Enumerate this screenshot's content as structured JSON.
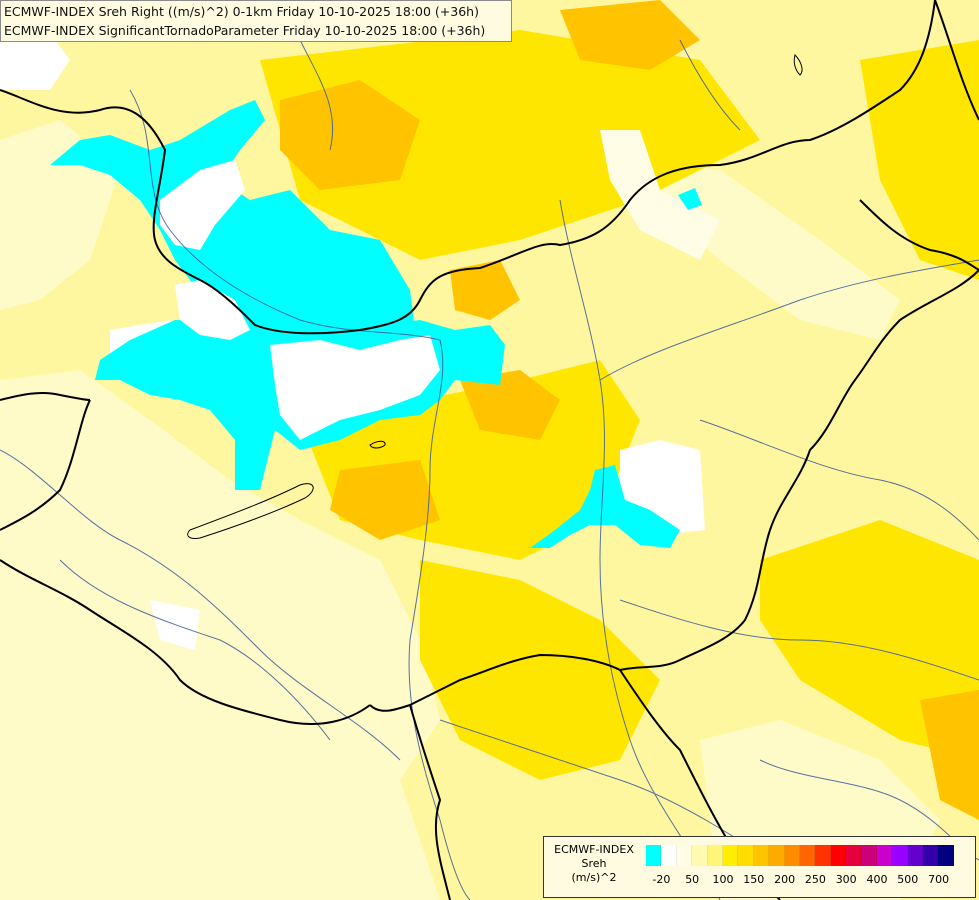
{
  "header": {
    "line1": "ECMWF-INDEX Sreh Right ((m/s)^2) 0-1km Friday 10-10-2025 18:00 (+36h)",
    "line2": "ECMWF-INDEX SignificantTornadoParameter Friday 10-10-2025 18:00 (+36h)"
  },
  "legend": {
    "title_line1": "ECMWF-INDEX",
    "title_line2": "Sreh",
    "title_line3": "(m/s)^2",
    "ticks": [
      "-20",
      "50",
      "100",
      "150",
      "200",
      "250",
      "300",
      "400",
      "500",
      "700"
    ],
    "colors": [
      "#00ffff",
      "#ffffff",
      "#fffde6",
      "#fffbb0",
      "#fff578",
      "#ffee00",
      "#ffdd00",
      "#ffc300",
      "#ffaa00",
      "#ff8c00",
      "#ff6600",
      "#ff3300",
      "#ff0000",
      "#e6003c",
      "#cc0078",
      "#cc00cc",
      "#9900ff",
      "#6600cc",
      "#3300aa",
      "#000080"
    ]
  },
  "map_colors": {
    "cyan": "#00ffff",
    "white": "#ffffff",
    "pale_yellow": "#fffbb0",
    "yellow": "#ffee00",
    "gold": "#ffdd00",
    "orange": "#ffc300",
    "border": "#000000",
    "river": "#2f4f8f"
  }
}
